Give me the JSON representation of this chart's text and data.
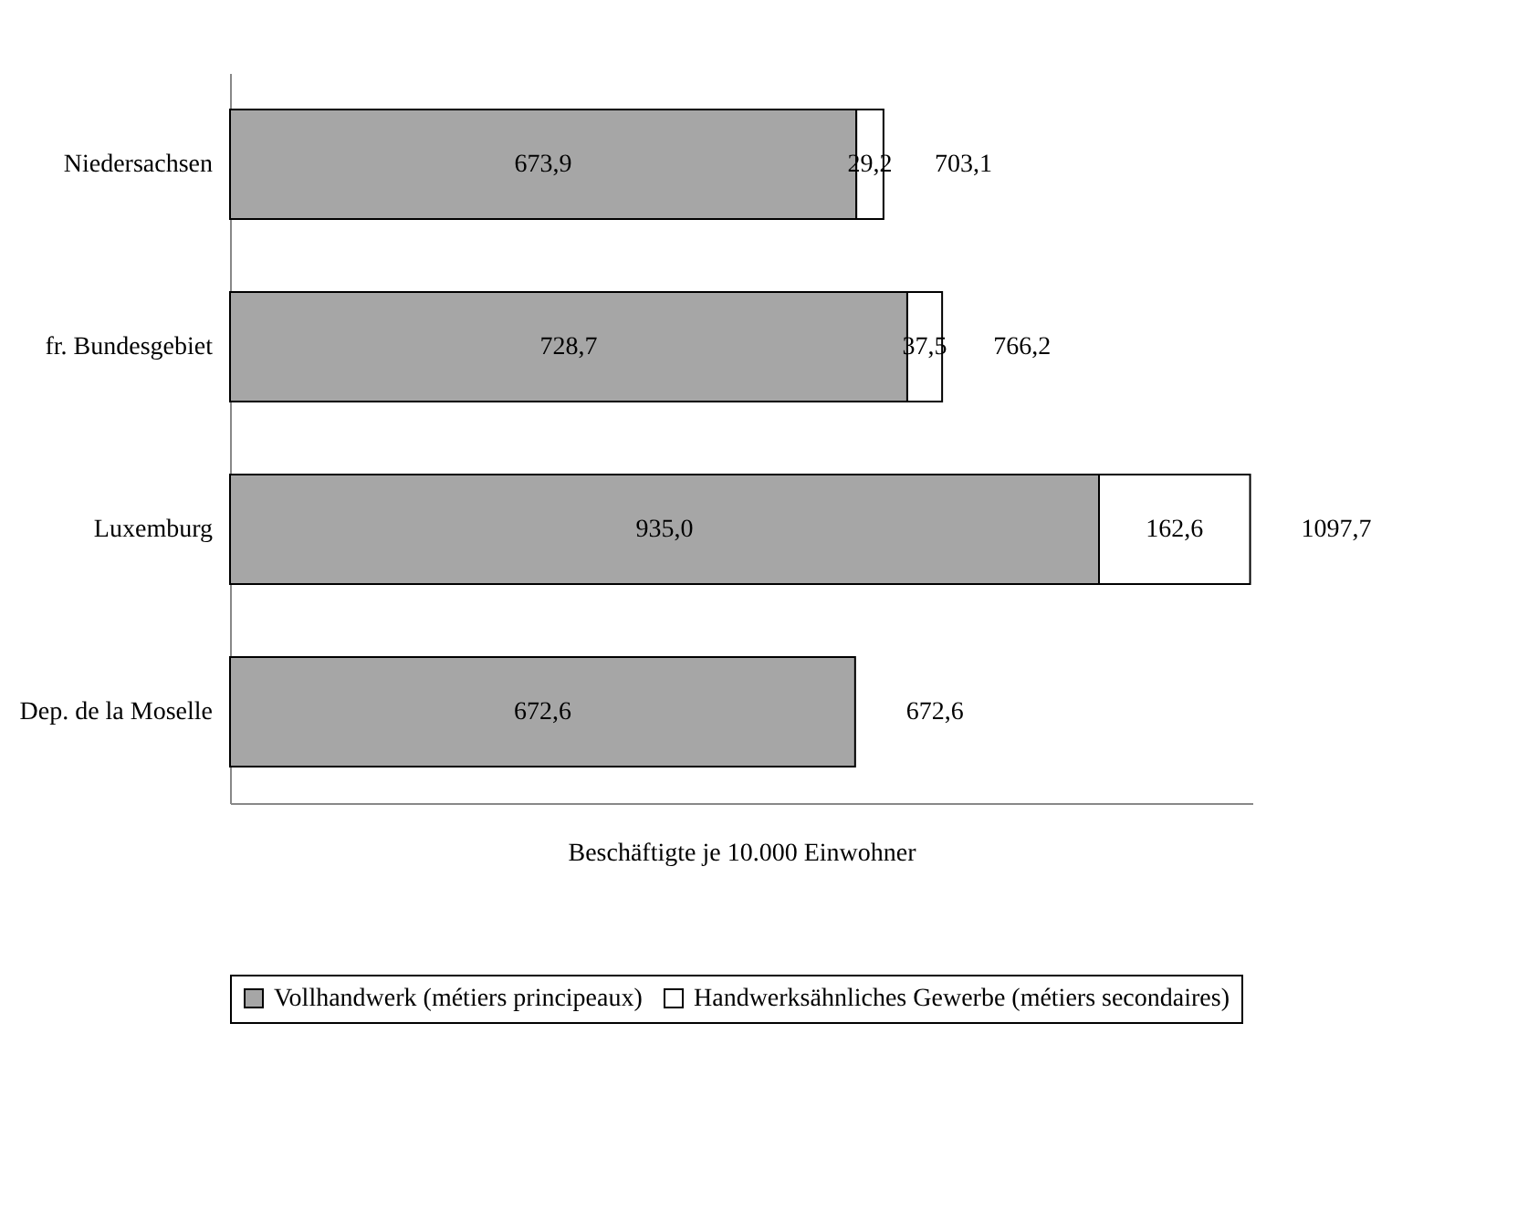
{
  "chart_data": {
    "type": "bar",
    "orientation": "horizontal",
    "stacked": true,
    "xlabel": "Beschäftigte je 10.000 Einwohner",
    "categories": [
      "Niedersachsen",
      "fr. Bundesgebiet",
      "Luxemburg",
      "Dep. de la Moselle"
    ],
    "series": [
      {
        "name": "Vollhandwerk (métiers principeaux)",
        "color": "#a6a6a6",
        "values": [
          673.9,
          728.7,
          935.0,
          672.6
        ],
        "value_labels": [
          "673,9",
          "728,7",
          "935,0",
          "672,6"
        ]
      },
      {
        "name": "Handwerksähnliches Gewerbe (métiers secondaires)",
        "color": "#ffffff",
        "values": [
          29.2,
          37.5,
          162.6,
          null
        ],
        "value_labels": [
          "29,2",
          "37,5",
          "162,6",
          null
        ]
      }
    ],
    "totals": [
      "703,1",
      "766,2",
      "1097,7",
      "672,6"
    ],
    "tick_labels": "y",
    "grid": false,
    "legend": "bottom"
  }
}
